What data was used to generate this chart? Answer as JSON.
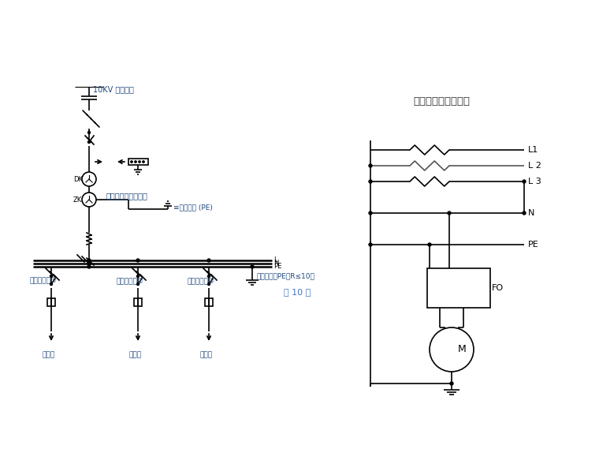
{
  "bg_color": "#ffffff",
  "line_color": "#000000",
  "gray_line_color": "#808080",
  "title_right": "漏电保护器接线方式",
  "label_10kv": "10KV 电源进线",
  "label_main_box": "总配电筱（一级筱）",
  "label_protect": "≡保护接零 (PE)",
  "label_box1": "二级配电桧①",
  "label_box2": "二级配电桧②",
  "label_box3": "二级配电桧③",
  "label_grnd": "重复接地（PE）R≤10欧",
  "label_3rd1": "三级桧",
  "label_3rd2": "三级桧",
  "label_3rd3": "三级桧",
  "label_page": "第 10 页",
  "label_L1": "L1",
  "label_L2": "L 2",
  "label_L3": "L 3",
  "label_N": "N",
  "label_PE": "PE",
  "label_FO": "FO",
  "label_M": "M",
  "label_DK": "DK",
  "label_ZK": "ZK"
}
